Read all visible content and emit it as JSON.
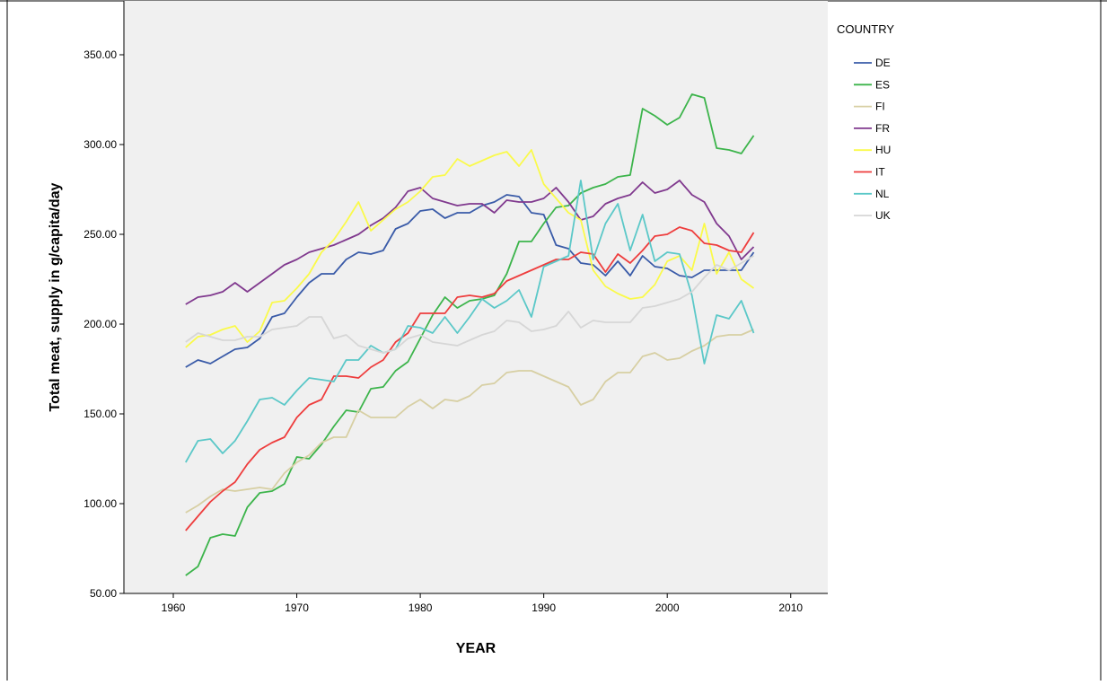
{
  "chart_data": {
    "type": "line",
    "title": "",
    "xlabel": "YEAR",
    "ylabel": "Total meat, supply in g/capita/day",
    "xlim": [
      1956,
      2013
    ],
    "ylim": [
      50,
      380
    ],
    "xticks": [
      1960,
      1970,
      1980,
      1990,
      2000,
      2010
    ],
    "yticks": [
      50,
      100,
      150,
      200,
      250,
      300,
      350
    ],
    "xtick_labels": [
      "1960",
      "1970",
      "1980",
      "1990",
      "2000",
      "2010"
    ],
    "ytick_labels": [
      "50.00",
      "100.00",
      "150.00",
      "200.00",
      "250.00",
      "300.00",
      "350.00"
    ],
    "grid": false,
    "legend_title": "COUNTRY",
    "legend_position": "right",
    "x": [
      1961,
      1962,
      1963,
      1964,
      1965,
      1966,
      1967,
      1968,
      1969,
      1970,
      1971,
      1972,
      1973,
      1974,
      1975,
      1976,
      1977,
      1978,
      1979,
      1980,
      1981,
      1982,
      1983,
      1984,
      1985,
      1986,
      1987,
      1988,
      1989,
      1990,
      1991,
      1992,
      1993,
      1994,
      1995,
      1996,
      1997,
      1998,
      1999,
      2000,
      2001,
      2002,
      2003,
      2004,
      2005,
      2006,
      2007
    ],
    "series": [
      {
        "name": "DE",
        "color": "#3a5ba8",
        "values": [
          176,
          180,
          178,
          182,
          186,
          187,
          192,
          204,
          206,
          215,
          223,
          228,
          228,
          236,
          240,
          239,
          241,
          253,
          256,
          263,
          264,
          259,
          262,
          262,
          266,
          268,
          272,
          271,
          262,
          261,
          244,
          242,
          234,
          233,
          227,
          235,
          227,
          238,
          232,
          231,
          227,
          226,
          230,
          230,
          230,
          230,
          240
        ]
      },
      {
        "name": "ES",
        "color": "#3cb44b",
        "values": [
          60,
          65,
          81,
          83,
          82,
          98,
          106,
          107,
          111,
          126,
          125,
          133,
          143,
          152,
          151,
          164,
          165,
          174,
          179,
          192,
          205,
          215,
          209,
          213,
          214,
          216,
          228,
          246,
          246,
          256,
          265,
          266,
          273,
          276,
          278,
          282,
          283,
          320,
          316,
          311,
          315,
          328,
          326,
          298,
          297,
          295,
          305
        ]
      },
      {
        "name": "FI",
        "color": "#d7cfa3",
        "values": [
          95,
          99,
          104,
          108,
          107,
          108,
          109,
          108,
          117,
          123,
          127,
          134,
          137,
          137,
          152,
          148,
          148,
          148,
          154,
          158,
          153,
          158,
          157,
          160,
          166,
          167,
          173,
          174,
          174,
          171,
          168,
          165,
          155,
          158,
          168,
          173,
          173,
          182,
          184,
          180,
          181,
          185,
          188,
          193,
          194,
          194,
          197
        ]
      },
      {
        "name": "FR",
        "color": "#80398e",
        "values": [
          211,
          215,
          216,
          218,
          223,
          218,
          223,
          228,
          233,
          236,
          240,
          242,
          244,
          247,
          250,
          255,
          259,
          265,
          274,
          276,
          270,
          268,
          266,
          267,
          267,
          262,
          269,
          268,
          268,
          270,
          276,
          268,
          258,
          260,
          267,
          270,
          272,
          279,
          273,
          275,
          280,
          272,
          268,
          256,
          249,
          236,
          243
        ]
      },
      {
        "name": "HU",
        "color": "#fafa4a",
        "values": [
          187,
          193,
          194,
          197,
          199,
          190,
          196,
          212,
          213,
          220,
          228,
          240,
          247,
          257,
          268,
          252,
          258,
          264,
          268,
          274,
          282,
          283,
          292,
          288,
          291,
          294,
          296,
          288,
          297,
          278,
          270,
          262,
          258,
          230,
          221,
          217,
          214,
          215,
          222,
          235,
          238,
          230,
          256,
          228,
          240,
          225,
          220
        ]
      },
      {
        "name": "IT",
        "color": "#ee3d3d",
        "values": [
          85,
          93,
          101,
          107,
          112,
          122,
          130,
          134,
          137,
          148,
          155,
          158,
          171,
          171,
          170,
          176,
          180,
          190,
          195,
          206,
          206,
          206,
          215,
          216,
          215,
          217,
          224,
          227,
          230,
          233,
          236,
          236,
          240,
          239,
          229,
          239,
          234,
          241,
          249,
          250,
          254,
          252,
          245,
          244,
          241,
          240,
          251
        ]
      },
      {
        "name": "NL",
        "color": "#5bc8c8",
        "values": [
          123,
          135,
          136,
          128,
          135,
          146,
          158,
          159,
          155,
          163,
          170,
          169,
          168,
          180,
          180,
          188,
          184,
          186,
          199,
          198,
          195,
          204,
          195,
          204,
          214,
          209,
          213,
          219,
          204,
          232,
          235,
          238,
          280,
          236,
          256,
          267,
          241,
          261,
          235,
          240,
          239,
          216,
          178,
          205,
          203,
          213,
          195
        ]
      },
      {
        "name": "UK",
        "color": "#d6d6d6",
        "values": [
          190,
          195,
          193,
          191,
          191,
          193,
          193,
          197,
          198,
          199,
          204,
          204,
          192,
          194,
          188,
          186,
          184,
          186,
          192,
          194,
          190,
          189,
          188,
          191,
          194,
          196,
          202,
          201,
          196,
          197,
          199,
          207,
          198,
          202,
          201,
          201,
          201,
          209,
          210,
          212,
          214,
          218,
          226,
          233,
          230,
          234,
          238
        ]
      }
    ]
  }
}
